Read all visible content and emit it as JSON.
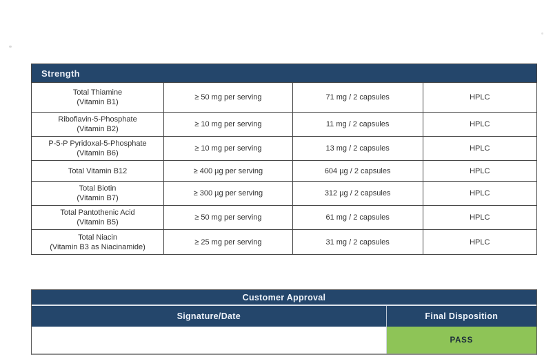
{
  "colors": {
    "navy_header": "#24466B",
    "pass_green": "#8EC457",
    "table_border": "#454545",
    "pass_text": "#1B2B3A"
  },
  "strength_table": {
    "title": "Strength",
    "rows": [
      {
        "name": "Total Thiamine",
        "sub": "(Vitamin B1)",
        "spec": "≥ 50 mg per serving",
        "result": "71 mg / 2 capsules",
        "method": "HPLC"
      },
      {
        "name": "Riboflavin-5-Phosphate",
        "sub": "(Vitamin B2)",
        "spec": "≥ 10 mg per serving",
        "result": "11 mg / 2 capsules",
        "method": "HPLC"
      },
      {
        "name": "P-5-P Pyridoxal-5-Phosphate",
        "sub": "(Vitamin B6)",
        "spec": "≥ 10 mg per serving",
        "result": "13 mg / 2 capsules",
        "method": "HPLC"
      },
      {
        "name": "Total Vitamin B12",
        "sub": "",
        "spec": "≥ 400 µg per serving",
        "result": "604 µg / 2 capsules",
        "method": "HPLC"
      },
      {
        "name": "Total Biotin",
        "sub": "(Vitamin B7)",
        "spec": "≥ 300 µg per serving",
        "result": "312 µg / 2 capsules",
        "method": "HPLC"
      },
      {
        "name": "Total Pantothenic Acid",
        "sub": "(Vitamin B5)",
        "spec": "≥ 50 mg per serving",
        "result": "61 mg / 2 capsules",
        "method": "HPLC"
      },
      {
        "name": "Total Niacin",
        "sub": "(Vitamin B3 as Niacinamide)",
        "spec": "≥ 25 mg per serving",
        "result": "31 mg / 2 capsules",
        "method": "HPLC"
      }
    ]
  },
  "approval": {
    "title": "Customer Approval",
    "signature_header": "Signature/Date",
    "disposition_header": "Final Disposition",
    "signature_value": "",
    "final_disposition": "PASS"
  }
}
